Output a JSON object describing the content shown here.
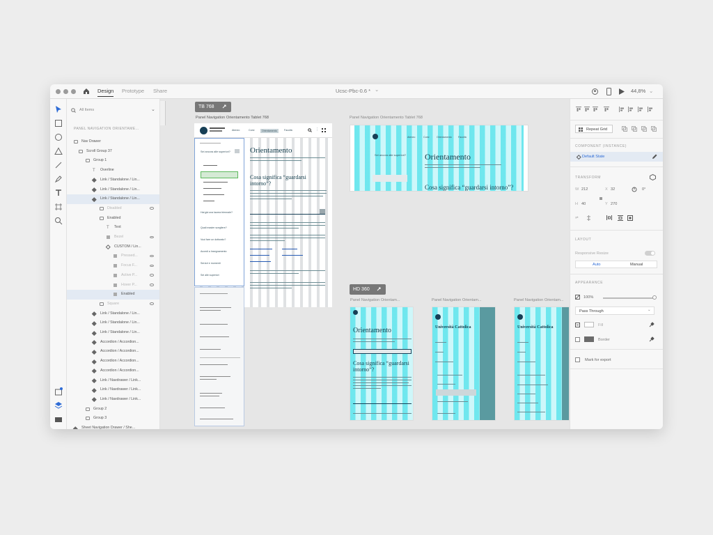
{
  "titlebar": {
    "tabs": [
      {
        "label": "Design"
      },
      {
        "label": "Prototype"
      },
      {
        "label": "Share"
      }
    ],
    "doc_title": "Ucsc-Pbc-0.6 *",
    "doc_chevron": "⌄",
    "zoom": "44,8%"
  },
  "layers": {
    "search_placeholder": "All Items",
    "crumb": "PANEL NAVIGATION ORIENTAME...",
    "rows": [
      {
        "label": "Nav Drawer",
        "icon": "folder"
      },
      {
        "label": "Scroll Group 37",
        "icon": "scroll"
      },
      {
        "label": "Group 1",
        "icon": "folder"
      },
      {
        "label": "Overline",
        "icon": "text"
      },
      {
        "label": "Link / Standalone / Lin...",
        "icon": "comp"
      },
      {
        "label": "Link / Standalone / Lin...",
        "icon": "comp"
      },
      {
        "label": "Link / Standalone / Lin...",
        "icon": "comp"
      },
      {
        "label": "Disabled",
        "icon": "folder"
      },
      {
        "label": "Enabled",
        "icon": "folder"
      },
      {
        "label": "Text",
        "icon": "text"
      },
      {
        "label": "Bezel",
        "icon": "rect"
      },
      {
        "label": "CUSTOM / Lin...",
        "icon": "comp-o"
      },
      {
        "label": "Pressed...",
        "icon": "rect"
      },
      {
        "label": "Focus F...",
        "icon": "rect"
      },
      {
        "label": "Active P...",
        "icon": "rect"
      },
      {
        "label": "Hover P...",
        "icon": "rect"
      },
      {
        "label": "Enabled",
        "icon": "rect"
      },
      {
        "label": "Square",
        "icon": "folder"
      },
      {
        "label": "Link / Standalone / Lin...",
        "icon": "comp"
      },
      {
        "label": "Link / Standalone / Lin...",
        "icon": "comp"
      },
      {
        "label": "Link / Standalone / Lin...",
        "icon": "comp"
      },
      {
        "label": "Accordion / Accordion...",
        "icon": "comp"
      },
      {
        "label": "Accordion / Accordion...",
        "icon": "comp"
      },
      {
        "label": "Accordion / Accordion...",
        "icon": "comp"
      },
      {
        "label": "Accordion / Accordion...",
        "icon": "comp"
      },
      {
        "label": "Link / Navdrawer / Link...",
        "icon": "comp"
      },
      {
        "label": "Link / Navdrawer / Link...",
        "icon": "comp"
      },
      {
        "label": "Link / Navdrawer / Link...",
        "icon": "comp"
      },
      {
        "label": "Group 2",
        "icon": "folder"
      },
      {
        "label": "Group 3",
        "icon": "folder"
      },
      {
        "label": "Sheet Navigation Drawer / She...",
        "icon": "comp"
      }
    ]
  },
  "canvas": {
    "badge_tb": "TB 768",
    "badge_hd": "HD 360",
    "ab_main_title": "Panel Navigation Orientamento Tablet 768",
    "ab_right_title": "Panel Navigation Orientamento Tablet 768",
    "ab_m1_title": "Panel Navigation Orientam...",
    "ab_m2_title": "Panel Navigation Orientam...",
    "ab_m3_title": "Panel Navigation Orientam...",
    "nav_items": [
      "Ateneo",
      "Corsi",
      "Orientamento",
      "Facoltà"
    ],
    "page_heading": "Orientamento",
    "page_intro": "Gli appuntamenti e le iniziative organizzate per supportarti nella scelta del corso di studi",
    "sub_heading": "Cosa significa “guardarsi intorno”?",
    "drawer_items": [
      "Sei ancora alle superiori?",
      "Hai già una laurea triennale?",
      "Quali master scegliere?",
      "Vuoi fare un dottorato?",
      "Accedi a Insegnamento",
      "Servizi e momenti",
      "Sei alle superiori",
      "Incontra i tutor",
      "Scegli il tuo percorso",
      "Orientamento universitario"
    ],
    "university_name": "Università Cattolica"
  },
  "props": {
    "align_row": "",
    "repeat_grid": "Repeat Grid",
    "component_head": "COMPONENT (INSTANCE)",
    "component_state": "Default State",
    "transform_head": "TRANSFORM",
    "w_label": "W",
    "w_val": "212",
    "x_label": "X",
    "x_val": "32",
    "rot_val": "0°",
    "h_label": "H",
    "h_val": "40",
    "y_label": "Y",
    "y_val": "270",
    "layout_head": "LAYOUT",
    "responsive": "Responsive Resize",
    "auto": "Auto",
    "manual": "Manual",
    "appearance_head": "APPEARANCE",
    "opacity": "100%",
    "blend": "Pass Through",
    "fill": "Fill",
    "border": "Border",
    "export": "Mark for export"
  }
}
